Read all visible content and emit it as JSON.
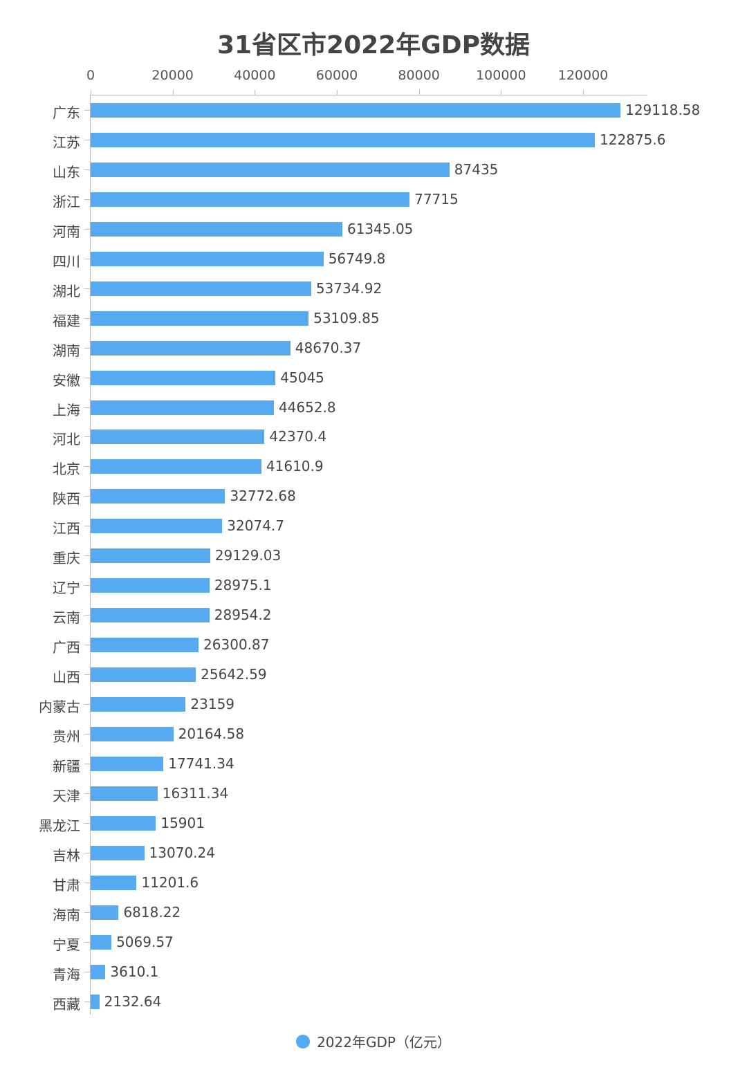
{
  "chart_data": {
    "type": "bar",
    "orientation": "horizontal",
    "title": "31省区市2022年GDP数据",
    "xlabel": "",
    "ylabel": "",
    "xlim": [
      0,
      135000
    ],
    "x_ticks": [
      "0",
      "20000",
      "40000",
      "60000",
      "80000",
      "100000",
      "120000"
    ],
    "grid": false,
    "legend_position": "bottom",
    "categories": [
      "广东",
      "江苏",
      "山东",
      "浙江",
      "河南",
      "四川",
      "湖北",
      "福建",
      "湖南",
      "安徽",
      "上海",
      "河北",
      "北京",
      "陕西",
      "江西",
      "重庆",
      "辽宁",
      "云南",
      "广西",
      "山西",
      "内蒙古",
      "贵州",
      "新疆",
      "天津",
      "黑龙江",
      "吉林",
      "甘肃",
      "海南",
      "宁夏",
      "青海",
      "西藏"
    ],
    "series": [
      {
        "name": "2022年GDP（亿元）",
        "color": "#55aaf2",
        "values": [
          129118.58,
          122875.6,
          87435,
          77715,
          61345.05,
          56749.8,
          53734.92,
          53109.85,
          48670.37,
          45045,
          44652.8,
          42370.4,
          41610.9,
          32772.68,
          32074.7,
          29129.03,
          28975.1,
          28954.2,
          26300.87,
          25642.59,
          23159,
          20164.58,
          17741.34,
          16311.34,
          15901,
          13070.24,
          11201.6,
          6818.22,
          5069.57,
          3610.1,
          2132.64
        ],
        "labels": [
          "129118.58",
          "122875.6",
          "87435",
          "77715",
          "61345.05",
          "56749.8",
          "53734.92",
          "53109.85",
          "48670.37",
          "45045",
          "44652.8",
          "42370.4",
          "41610.9",
          "32772.68",
          "32074.7",
          "29129.03",
          "28975.1",
          "28954.2",
          "26300.87",
          "25642.59",
          "23159",
          "20164.58",
          "17741.34",
          "16311.34",
          "15901",
          "13070.24",
          "11201.6",
          "6818.22",
          "5069.57",
          "3610.1",
          "2132.64"
        ]
      }
    ]
  },
  "title": "31省区市2022年GDP数据",
  "legend": {
    "label": "2022年GDP（亿元）",
    "color": "#55aaf2"
  }
}
